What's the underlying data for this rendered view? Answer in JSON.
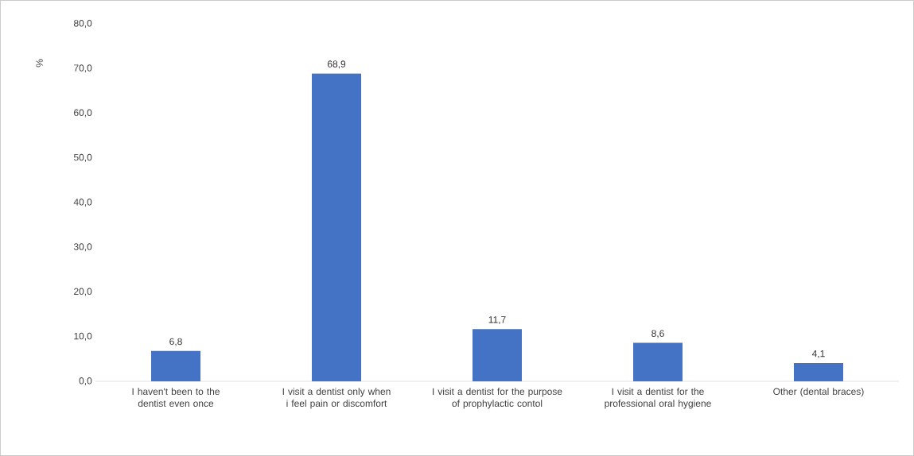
{
  "chart_data": {
    "type": "bar",
    "ylabel": "%",
    "categories": [
      "I haven't been to the dentist even once",
      "I visit a dentist only when i feel pain or discomfort",
      "I visit a dentist for the purpose of prophylactic contol",
      "I visit a dentist for the professional oral hygiene",
      "Other (dental braces)"
    ],
    "values": [
      6.8,
      68.9,
      11.7,
      8.6,
      4.1
    ],
    "value_labels": [
      "6,8",
      "68,9",
      "11,7",
      "8,6",
      "4,1"
    ],
    "color": "#4472c4",
    "ylim": [
      0,
      80
    ],
    "yticks": [
      {
        "value": 0,
        "label": "0,0"
      },
      {
        "value": 10,
        "label": "10,0"
      },
      {
        "value": 20,
        "label": "20,0"
      },
      {
        "value": 30,
        "label": "30,0"
      },
      {
        "value": 40,
        "label": "40,0"
      },
      {
        "value": 50,
        "label": "50,0"
      },
      {
        "value": 60,
        "label": "60,0"
      },
      {
        "value": 70,
        "label": "70,0"
      },
      {
        "value": 80,
        "label": "80,0"
      }
    ],
    "grid": false
  }
}
